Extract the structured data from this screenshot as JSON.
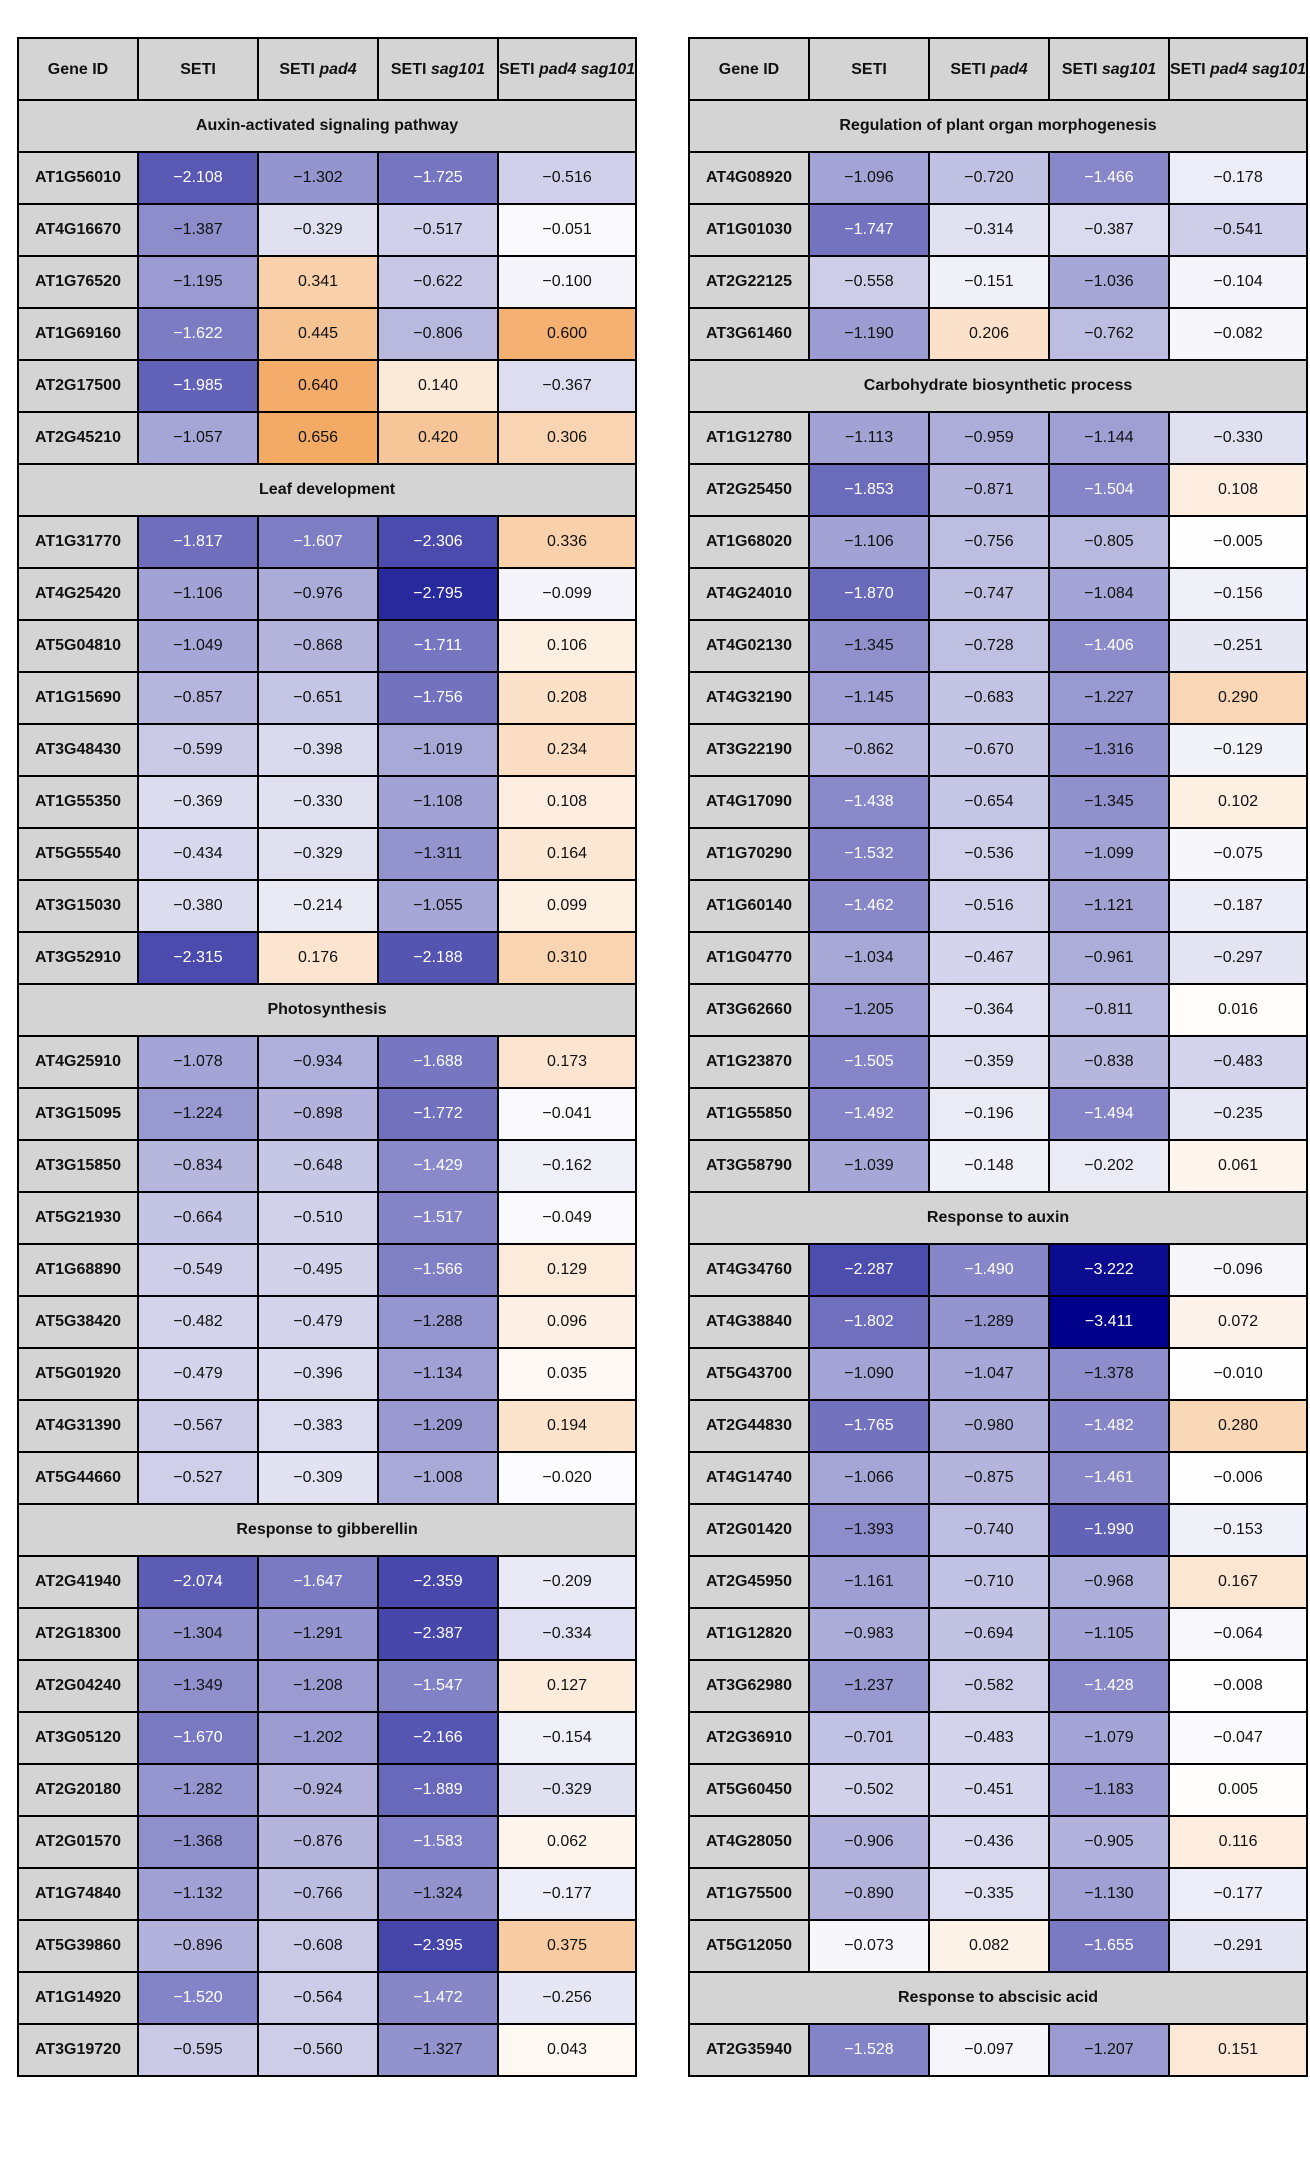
{
  "headers": [
    "Gene ID",
    "SETI",
    "SETI pad4",
    "SETI sag101",
    "SETI pad4 sag101"
  ],
  "header_parts": [
    {
      "plain": "Gene ID",
      "italic": ""
    },
    {
      "plain": "SETI",
      "italic": ""
    },
    {
      "plain": "SETI",
      "italic": "pad4"
    },
    {
      "plain": "SETI",
      "italic": "sag101"
    },
    {
      "plain": "SETI",
      "italic": "pad4 sag101"
    }
  ],
  "color_scale": {
    "min": -3.4,
    "max": 0.7,
    "negative": "#00008b",
    "mid": "#ffffff",
    "positive": "#f2a55c"
  },
  "chart_data": {
    "type": "heatmap",
    "columns": [
      "SETI",
      "SETI pad4",
      "SETI sag101",
      "SETI pad4 sag101"
    ],
    "tables": [
      {
        "sections": [
          {
            "title": "Auxin-activated signaling pathway",
            "rows": [
              {
                "gene": "AT1G56010",
                "values": [
                  -2.108,
                  -1.302,
                  -1.725,
                  -0.516
                ]
              },
              {
                "gene": "AT4G16670",
                "values": [
                  -1.387,
                  -0.329,
                  -0.517,
                  -0.051
                ]
              },
              {
                "gene": "AT1G76520",
                "values": [
                  -1.195,
                  0.341,
                  -0.622,
                  -0.1
                ]
              },
              {
                "gene": "AT1G69160",
                "values": [
                  -1.622,
                  0.445,
                  -0.806,
                  0.6
                ]
              },
              {
                "gene": "AT2G17500",
                "values": [
                  -1.985,
                  0.64,
                  0.14,
                  -0.367
                ]
              },
              {
                "gene": "AT2G45210",
                "values": [
                  -1.057,
                  0.656,
                  0.42,
                  0.306
                ]
              }
            ]
          },
          {
            "title": "Leaf development",
            "rows": [
              {
                "gene": "AT1G31770",
                "values": [
                  -1.817,
                  -1.607,
                  -2.306,
                  0.336
                ]
              },
              {
                "gene": "AT4G25420",
                "values": [
                  -1.106,
                  -0.976,
                  -2.795,
                  -0.099
                ]
              },
              {
                "gene": "AT5G04810",
                "values": [
                  -1.049,
                  -0.868,
                  -1.711,
                  0.106
                ]
              },
              {
                "gene": "AT1G15690",
                "values": [
                  -0.857,
                  -0.651,
                  -1.756,
                  0.208
                ]
              },
              {
                "gene": "AT3G48430",
                "values": [
                  -0.599,
                  -0.398,
                  -1.019,
                  0.234
                ]
              },
              {
                "gene": "AT1G55350",
                "values": [
                  -0.369,
                  -0.33,
                  -1.108,
                  0.108
                ]
              },
              {
                "gene": "AT5G55540",
                "values": [
                  -0.434,
                  -0.329,
                  -1.311,
                  0.164
                ]
              },
              {
                "gene": "AT3G15030",
                "values": [
                  -0.38,
                  -0.214,
                  -1.055,
                  0.099
                ]
              },
              {
                "gene": "AT3G52910",
                "values": [
                  -2.315,
                  0.176,
                  -2.188,
                  0.31
                ]
              }
            ]
          },
          {
            "title": "Photosynthesis",
            "rows": [
              {
                "gene": "AT4G25910",
                "values": [
                  -1.078,
                  -0.934,
                  -1.688,
                  0.173
                ]
              },
              {
                "gene": "AT3G15095",
                "values": [
                  -1.224,
                  -0.898,
                  -1.772,
                  -0.041
                ]
              },
              {
                "gene": "AT3G15850",
                "values": [
                  -0.834,
                  -0.648,
                  -1.429,
                  -0.162
                ]
              },
              {
                "gene": "AT5G21930",
                "values": [
                  -0.664,
                  -0.51,
                  -1.517,
                  -0.049
                ]
              },
              {
                "gene": "AT1G68890",
                "values": [
                  -0.549,
                  -0.495,
                  -1.566,
                  0.129
                ]
              },
              {
                "gene": "AT5G38420",
                "values": [
                  -0.482,
                  -0.479,
                  -1.288,
                  0.096
                ]
              },
              {
                "gene": "AT5G01920",
                "values": [
                  -0.479,
                  -0.396,
                  -1.134,
                  0.035
                ]
              },
              {
                "gene": "AT4G31390",
                "values": [
                  -0.567,
                  -0.383,
                  -1.209,
                  0.194
                ]
              },
              {
                "gene": "AT5G44660",
                "values": [
                  -0.527,
                  -0.309,
                  -1.008,
                  -0.02
                ]
              }
            ]
          },
          {
            "title": "Response to gibberellin",
            "rows": [
              {
                "gene": "AT2G41940",
                "values": [
                  -2.074,
                  -1.647,
                  -2.359,
                  -0.209
                ]
              },
              {
                "gene": "AT2G18300",
                "values": [
                  -1.304,
                  -1.291,
                  -2.387,
                  -0.334
                ]
              },
              {
                "gene": "AT2G04240",
                "values": [
                  -1.349,
                  -1.208,
                  -1.547,
                  0.127
                ]
              },
              {
                "gene": "AT3G05120",
                "values": [
                  -1.67,
                  -1.202,
                  -2.166,
                  -0.154
                ]
              },
              {
                "gene": "AT2G20180",
                "values": [
                  -1.282,
                  -0.924,
                  -1.889,
                  -0.329
                ]
              },
              {
                "gene": "AT2G01570",
                "values": [
                  -1.368,
                  -0.876,
                  -1.583,
                  0.062
                ]
              },
              {
                "gene": "AT1G74840",
                "values": [
                  -1.132,
                  -0.766,
                  -1.324,
                  -0.177
                ]
              },
              {
                "gene": "AT5G39860",
                "values": [
                  -0.896,
                  -0.608,
                  -2.395,
                  0.375
                ]
              },
              {
                "gene": "AT1G14920",
                "values": [
                  -1.52,
                  -0.564,
                  -1.472,
                  -0.256
                ]
              },
              {
                "gene": "AT3G19720",
                "values": [
                  -0.595,
                  -0.56,
                  -1.327,
                  0.043
                ]
              }
            ]
          }
        ]
      },
      {
        "sections": [
          {
            "title": "Regulation of plant organ morphogenesis",
            "rows": [
              {
                "gene": "AT4G08920",
                "values": [
                  -1.096,
                  -0.72,
                  -1.466,
                  -0.178
                ]
              },
              {
                "gene": "AT1G01030",
                "values": [
                  -1.747,
                  -0.314,
                  -0.387,
                  -0.541
                ]
              },
              {
                "gene": "AT2G22125",
                "values": [
                  -0.558,
                  -0.151,
                  -1.036,
                  -0.104
                ]
              },
              {
                "gene": "AT3G61460",
                "values": [
                  -1.19,
                  0.206,
                  -0.762,
                  -0.082
                ]
              }
            ]
          },
          {
            "title": "Carbohydrate biosynthetic process",
            "rows": [
              {
                "gene": "AT1G12780",
                "values": [
                  -1.113,
                  -0.959,
                  -1.144,
                  -0.33
                ]
              },
              {
                "gene": "AT2G25450",
                "values": [
                  -1.853,
                  -0.871,
                  -1.504,
                  0.108
                ]
              },
              {
                "gene": "AT1G68020",
                "values": [
                  -1.106,
                  -0.756,
                  -0.805,
                  -0.005
                ]
              },
              {
                "gene": "AT4G24010",
                "values": [
                  -1.87,
                  -0.747,
                  -1.084,
                  -0.156
                ]
              },
              {
                "gene": "AT4G02130",
                "values": [
                  -1.345,
                  -0.728,
                  -1.406,
                  -0.251
                ]
              },
              {
                "gene": "AT4G32190",
                "values": [
                  -1.145,
                  -0.683,
                  -1.227,
                  0.29
                ]
              },
              {
                "gene": "AT3G22190",
                "values": [
                  -0.862,
                  -0.67,
                  -1.316,
                  -0.129
                ]
              },
              {
                "gene": "AT4G17090",
                "values": [
                  -1.438,
                  -0.654,
                  -1.345,
                  0.102
                ]
              },
              {
                "gene": "AT1G70290",
                "values": [
                  -1.532,
                  -0.536,
                  -1.099,
                  -0.075
                ]
              },
              {
                "gene": "AT1G60140",
                "values": [
                  -1.462,
                  -0.516,
                  -1.121,
                  -0.187
                ]
              },
              {
                "gene": "AT1G04770",
                "values": [
                  -1.034,
                  -0.467,
                  -0.961,
                  -0.297
                ]
              },
              {
                "gene": "AT3G62660",
                "values": [
                  -1.205,
                  -0.364,
                  -0.811,
                  0.016
                ]
              },
              {
                "gene": "AT1G23870",
                "values": [
                  -1.505,
                  -0.359,
                  -0.838,
                  -0.483
                ]
              },
              {
                "gene": "AT1G55850",
                "values": [
                  -1.492,
                  -0.196,
                  -1.494,
                  -0.235
                ]
              },
              {
                "gene": "AT3G58790",
                "values": [
                  -1.039,
                  -0.148,
                  -0.202,
                  0.061
                ]
              }
            ]
          },
          {
            "title": "Response to auxin",
            "rows": [
              {
                "gene": "AT4G34760",
                "values": [
                  -2.287,
                  -1.49,
                  -3.222,
                  -0.096
                ]
              },
              {
                "gene": "AT4G38840",
                "values": [
                  -1.802,
                  -1.289,
                  -3.411,
                  0.072
                ]
              },
              {
                "gene": "AT5G43700",
                "values": [
                  -1.09,
                  -1.047,
                  -1.378,
                  -0.01
                ]
              },
              {
                "gene": "AT2G44830",
                "values": [
                  -1.765,
                  -0.98,
                  -1.482,
                  0.28
                ]
              },
              {
                "gene": "AT4G14740",
                "values": [
                  -1.066,
                  -0.875,
                  -1.461,
                  -0.006
                ]
              },
              {
                "gene": "AT2G01420",
                "values": [
                  -1.393,
                  -0.74,
                  -1.99,
                  -0.153
                ]
              },
              {
                "gene": "AT2G45950",
                "values": [
                  -1.161,
                  -0.71,
                  -0.968,
                  0.167
                ]
              },
              {
                "gene": "AT1G12820",
                "values": [
                  -0.983,
                  -0.694,
                  -1.105,
                  -0.064
                ]
              },
              {
                "gene": "AT3G62980",
                "values": [
                  -1.237,
                  -0.582,
                  -1.428,
                  -0.008
                ]
              },
              {
                "gene": "AT2G36910",
                "values": [
                  -0.701,
                  -0.483,
                  -1.079,
                  -0.047
                ]
              },
              {
                "gene": "AT5G60450",
                "values": [
                  -0.502,
                  -0.451,
                  -1.183,
                  0.005
                ]
              },
              {
                "gene": "AT4G28050",
                "values": [
                  -0.906,
                  -0.436,
                  -0.905,
                  0.116
                ]
              },
              {
                "gene": "AT1G75500",
                "values": [
                  -0.89,
                  -0.335,
                  -1.13,
                  -0.177
                ]
              },
              {
                "gene": "AT5G12050",
                "values": [
                  -0.073,
                  0.082,
                  -1.655,
                  -0.291
                ]
              }
            ]
          },
          {
            "title": "Response to abscisic acid",
            "rows": [
              {
                "gene": "AT2G35940",
                "values": [
                  -1.528,
                  -0.097,
                  -1.207,
                  0.151
                ]
              }
            ]
          }
        ]
      }
    ]
  }
}
